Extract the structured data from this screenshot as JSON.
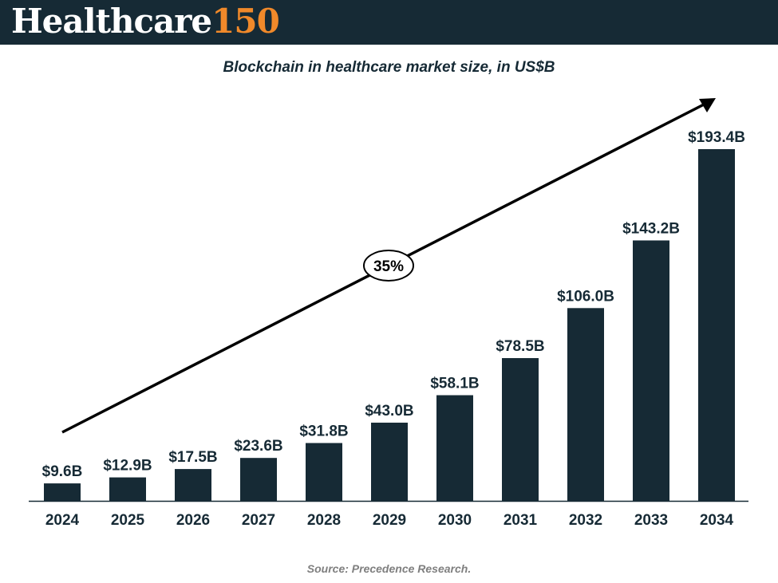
{
  "header": {
    "logo_main": "Healthcare",
    "logo_accent": "150",
    "bg_color": "#162a35",
    "accent_color": "#f0892a"
  },
  "chart_data": {
    "type": "bar",
    "title": "Blockchain in healthcare market size, in US$B",
    "categories": [
      "2024",
      "2025",
      "2026",
      "2027",
      "2028",
      "2029",
      "2030",
      "2031",
      "2032",
      "2033",
      "2034"
    ],
    "values": [
      9.6,
      12.9,
      17.5,
      23.6,
      31.8,
      43.0,
      58.1,
      78.5,
      106.0,
      143.2,
      193.4
    ],
    "value_labels": [
      "$9.6B",
      "$12.9B",
      "$17.5B",
      "$23.6B",
      "$31.8B",
      "$43.0B",
      "$58.1B",
      "$78.5B",
      "$106.0B",
      "$143.2B",
      "$193.4B"
    ],
    "xlabel": "",
    "ylabel": "",
    "ylim": [
      0,
      200
    ],
    "grid": false,
    "bar_color": "#162a35",
    "annotation": {
      "type": "trend-arrow",
      "label": "35%"
    }
  },
  "source": "Source: Precedence Research."
}
